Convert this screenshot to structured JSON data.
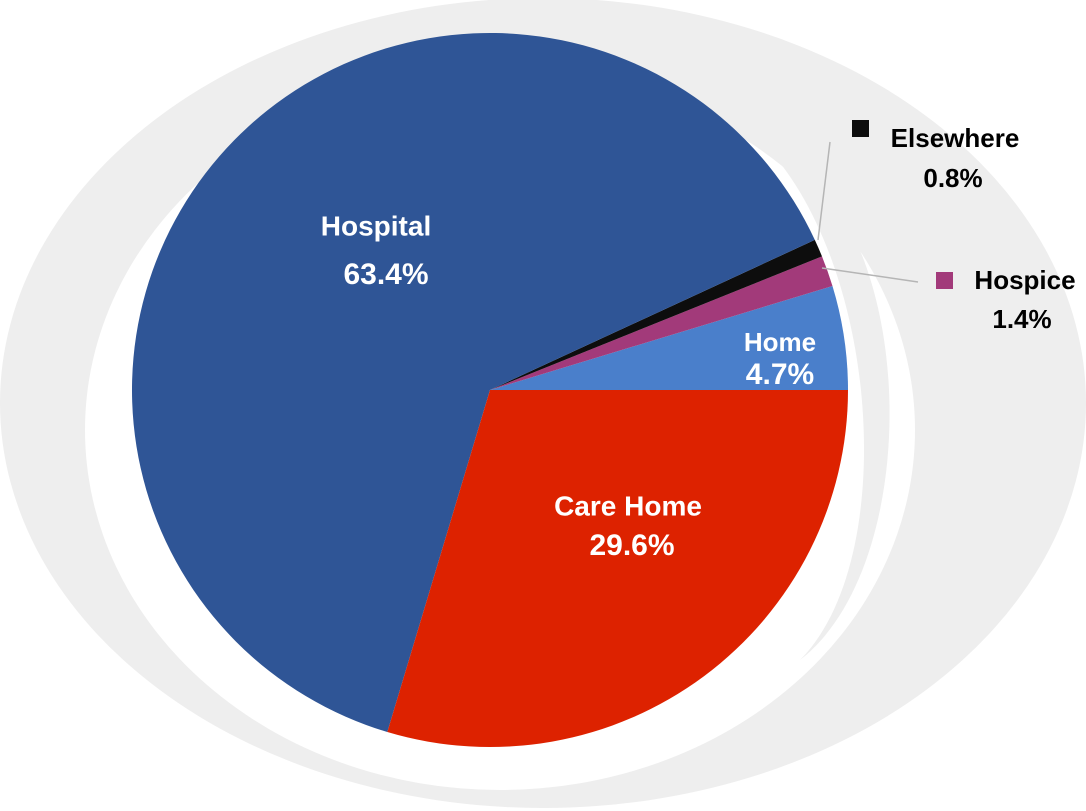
{
  "chart_data": {
    "type": "pie",
    "title": "",
    "slices": [
      {
        "label": "Home",
        "value": 4.7,
        "display": "4.7%",
        "color": "#4a7fcb",
        "text_color": "#ffffff",
        "label_placement": "inside"
      },
      {
        "label": "Hospice",
        "value": 1.4,
        "display": "1.4%",
        "color": "#a23a7a",
        "text_color": "#000000",
        "label_placement": "outside"
      },
      {
        "label": "Elsewhere",
        "value": 0.8,
        "display": "0.8%",
        "color": "#0d0d0d",
        "text_color": "#000000",
        "label_placement": "outside"
      },
      {
        "label": "Hospital",
        "value": 63.4,
        "display": "63.4%",
        "color": "#2f5596",
        "text_color": "#ffffff",
        "label_placement": "inside"
      },
      {
        "label": "Care Home",
        "value": 29.6,
        "display": "29.6%",
        "color": "#dd2200",
        "text_color": "#ffffff",
        "label_placement": "inside"
      }
    ],
    "start_direction": "right (3 o'clock)",
    "slice_order": "counter-clockwise",
    "legend": "none (labels on/next to slices)",
    "decoration": "light grey swirl ring behind pie"
  },
  "colors": {
    "ring": "#eeeeee",
    "leader_line": "#b5b5b5"
  }
}
